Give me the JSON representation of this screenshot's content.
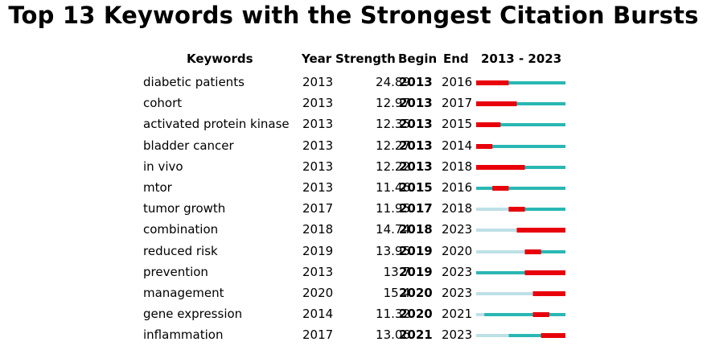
{
  "title": "Top 13 Keywords with the Strongest Citation Bursts",
  "headers": {
    "keywords": "Keywords",
    "year": "Year",
    "strength": "Strength",
    "begin": "Begin",
    "end": "End",
    "range": "2013 - 2023"
  },
  "colors": {
    "baseline_light": "#bde0e6",
    "baseline_active": "#2ab7b3",
    "burst": "#e8000b"
  },
  "chart_data": {
    "type": "table",
    "timeline": [
      2013,
      2023
    ],
    "rows": [
      {
        "keyword": "diabetic patients",
        "year": "2013",
        "strength": "24.89",
        "begin": "2013",
        "end": "2016"
      },
      {
        "keyword": "cohort",
        "year": "2013",
        "strength": "12.97",
        "begin": "2013",
        "end": "2017"
      },
      {
        "keyword": "activated protein kinase",
        "year": "2013",
        "strength": "12.35",
        "begin": "2013",
        "end": "2015"
      },
      {
        "keyword": "bladder cancer",
        "year": "2013",
        "strength": "12.27",
        "begin": "2013",
        "end": "2014"
      },
      {
        "keyword": "in vivo",
        "year": "2013",
        "strength": "12.22",
        "begin": "2013",
        "end": "2018"
      },
      {
        "keyword": "mtor",
        "year": "2013",
        "strength": "11.46",
        "begin": "2015",
        "end": "2016"
      },
      {
        "keyword": "tumor growth",
        "year": "2017",
        "strength": "11.95",
        "begin": "2017",
        "end": "2018"
      },
      {
        "keyword": "combination",
        "year": "2018",
        "strength": "14.74",
        "begin": "2018",
        "end": "2023"
      },
      {
        "keyword": "reduced risk",
        "year": "2019",
        "strength": "13.95",
        "begin": "2019",
        "end": "2020"
      },
      {
        "keyword": "prevention",
        "year": "2013",
        "strength": "13.7",
        "begin": "2019",
        "end": "2023"
      },
      {
        "keyword": "management",
        "year": "2020",
        "strength": "15.4",
        "begin": "2020",
        "end": "2023"
      },
      {
        "keyword": "gene expression",
        "year": "2014",
        "strength": "11.32",
        "begin": "2020",
        "end": "2021"
      },
      {
        "keyword": "inflammation",
        "year": "2017",
        "strength": "13.06",
        "begin": "2021",
        "end": "2023"
      }
    ]
  }
}
